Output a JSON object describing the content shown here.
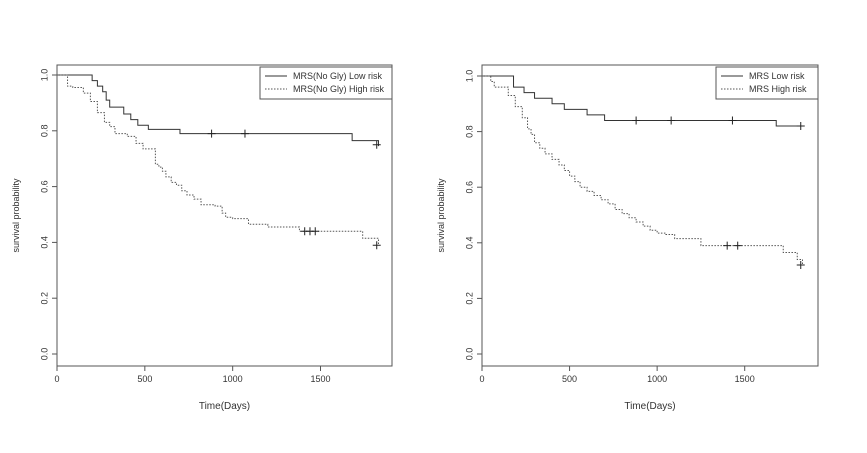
{
  "chart_data": [
    {
      "type": "line",
      "step": true,
      "title": "",
      "xlabel": "Time(Days)",
      "ylabel": "survival probability",
      "xlim": [
        0,
        1850
      ],
      "ylim": [
        0,
        1.0
      ],
      "xticks": [
        0,
        500,
        1000,
        1500
      ],
      "yticks": [
        0.0,
        0.2,
        0.4,
        0.6,
        0.8,
        1.0
      ],
      "xtick_labels": [
        "0",
        "500",
        "1000",
        "1500"
      ],
      "ytick_labels": [
        "0.0",
        "0.2",
        "0.4",
        "0.6",
        "0.8",
        "1.0"
      ],
      "legend": "top-right",
      "grid": false,
      "series": [
        {
          "name": "MRS(No Gly) Low risk",
          "style": "solid",
          "color": "#333333",
          "x": [
            0,
            160,
            200,
            230,
            260,
            280,
            300,
            380,
            420,
            460,
            520,
            700,
            1680,
            1830
          ],
          "y": [
            1.0,
            1.0,
            0.98,
            0.96,
            0.94,
            0.91,
            0.885,
            0.86,
            0.84,
            0.82,
            0.805,
            0.79,
            0.765,
            0.745
          ],
          "censor_x": [
            880,
            1070,
            1820
          ],
          "censor_y": [
            0.79,
            0.79,
            0.75
          ]
        },
        {
          "name": "MRS(No Gly) High risk",
          "style": "dotted",
          "color": "#555555",
          "x": [
            0,
            60,
            90,
            150,
            190,
            230,
            270,
            300,
            330,
            400,
            450,
            490,
            560,
            580,
            600,
            620,
            650,
            680,
            710,
            740,
            780,
            820,
            900,
            940,
            960,
            1000,
            1090,
            1200,
            1380,
            1740,
            1830
          ],
          "y": [
            1.0,
            0.96,
            0.955,
            0.935,
            0.905,
            0.865,
            0.83,
            0.815,
            0.79,
            0.78,
            0.755,
            0.735,
            0.68,
            0.67,
            0.655,
            0.635,
            0.615,
            0.605,
            0.585,
            0.57,
            0.555,
            0.535,
            0.53,
            0.505,
            0.49,
            0.485,
            0.465,
            0.455,
            0.44,
            0.415,
            0.39
          ],
          "censor_x": [
            1410,
            1440,
            1470,
            1820
          ],
          "censor_y": [
            0.44,
            0.44,
            0.44,
            0.39
          ]
        }
      ]
    },
    {
      "type": "line",
      "step": true,
      "title": "",
      "xlabel": "Time(Days)",
      "ylabel": "survival probability",
      "xlim": [
        0,
        1850
      ],
      "ylim": [
        0,
        1.0
      ],
      "xticks": [
        0,
        500,
        1000,
        1500
      ],
      "yticks": [
        0.0,
        0.2,
        0.4,
        0.6,
        0.8,
        1.0
      ],
      "xtick_labels": [
        "0",
        "500",
        "1000",
        "1500"
      ],
      "ytick_labels": [
        "0.0",
        "0.2",
        "0.4",
        "0.6",
        "0.8",
        "1.0"
      ],
      "legend": "top-right",
      "grid": false,
      "series": [
        {
          "name": "MRS Low risk",
          "style": "solid",
          "color": "#333333",
          "x": [
            0,
            180,
            240,
            300,
            400,
            470,
            600,
            700,
            1680,
            1830
          ],
          "y": [
            1.0,
            0.96,
            0.94,
            0.92,
            0.9,
            0.88,
            0.86,
            0.84,
            0.82,
            0.82
          ],
          "censor_x": [
            880,
            1080,
            1430,
            1820
          ],
          "censor_y": [
            0.84,
            0.84,
            0.84,
            0.82
          ]
        },
        {
          "name": "MRS High risk",
          "style": "dotted",
          "color": "#555555",
          "x": [
            0,
            50,
            70,
            150,
            190,
            230,
            260,
            280,
            300,
            330,
            360,
            400,
            440,
            470,
            500,
            530,
            560,
            600,
            640,
            680,
            720,
            760,
            800,
            840,
            880,
            920,
            960,
            1000,
            1050,
            1100,
            1250,
            1720,
            1800,
            1830
          ],
          "y": [
            1.0,
            0.98,
            0.96,
            0.93,
            0.89,
            0.85,
            0.81,
            0.79,
            0.76,
            0.74,
            0.72,
            0.7,
            0.68,
            0.66,
            0.64,
            0.62,
            0.6,
            0.585,
            0.57,
            0.555,
            0.54,
            0.52,
            0.505,
            0.49,
            0.475,
            0.46,
            0.445,
            0.435,
            0.43,
            0.415,
            0.39,
            0.365,
            0.34,
            0.32
          ],
          "censor_x": [
            1400,
            1460,
            1820
          ],
          "censor_y": [
            0.39,
            0.39,
            0.32
          ]
        }
      ]
    }
  ]
}
